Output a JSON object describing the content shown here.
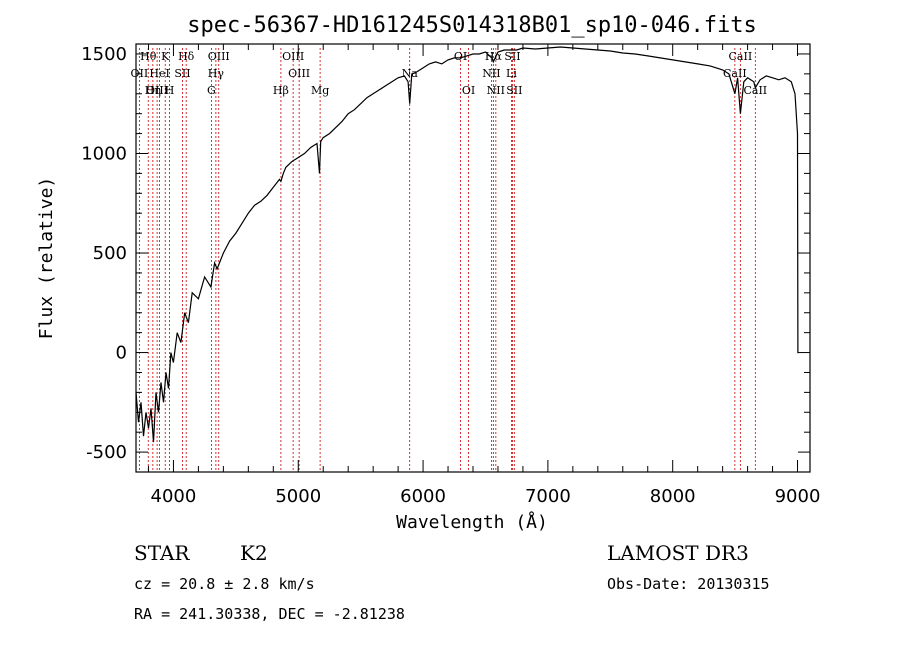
{
  "chart_data": {
    "type": "line",
    "title": "spec-56367-HD161245S014318B01_sp10-046.fits",
    "xlabel": "Wavelength (Å)",
    "ylabel": "Flux (relative)",
    "xlim": [
      3700,
      9100
    ],
    "ylim": [
      -600,
      1550
    ],
    "xticks": [
      4000,
      5000,
      6000,
      7000,
      8000,
      9000
    ],
    "yticks": [
      -500,
      0,
      500,
      1000,
      1500
    ],
    "grid": false,
    "series": [
      {
        "x": [
          3700,
          3720,
          3740,
          3760,
          3780,
          3800,
          3820,
          3840,
          3860,
          3880,
          3900,
          3920,
          3940,
          3960,
          3980,
          4000,
          4030,
          4060,
          4090,
          4120,
          4150,
          4200,
          4250,
          4300,
          4330,
          4350,
          4400,
          4450,
          4500,
          4550,
          4600,
          4650,
          4700,
          4750,
          4800,
          4850,
          4861,
          4880,
          4900,
          4950,
          5000,
          5050,
          5100,
          5150,
          5170,
          5180,
          5200,
          5250,
          5300,
          5350,
          5400,
          5450,
          5500,
          5550,
          5600,
          5650,
          5700,
          5750,
          5800,
          5850,
          5880,
          5893,
          5910,
          5950,
          6000,
          6050,
          6100,
          6150,
          6200,
          6250,
          6300,
          6350,
          6400,
          6450,
          6500,
          6550,
          6563,
          6600,
          6650,
          6700,
          6750,
          6800,
          6900,
          7000,
          7100,
          7200,
          7300,
          7400,
          7500,
          7600,
          7700,
          7800,
          7900,
          8000,
          8100,
          8200,
          8300,
          8400,
          8450,
          8498,
          8520,
          8542,
          8570,
          8600,
          8650,
          8662,
          8700,
          8750,
          8800,
          8850,
          8900,
          8950,
          8980,
          9000,
          9003,
          9006
        ],
        "y": [
          -200,
          -350,
          -250,
          -420,
          -300,
          -380,
          -280,
          -450,
          -200,
          -300,
          -150,
          -250,
          -100,
          -180,
          0,
          -50,
          100,
          50,
          200,
          150,
          300,
          270,
          380,
          330,
          450,
          420,
          500,
          560,
          600,
          650,
          700,
          740,
          760,
          790,
          830,
          870,
          860,
          900,
          930,
          960,
          980,
          1000,
          1030,
          1050,
          900,
          1060,
          1080,
          1100,
          1130,
          1160,
          1200,
          1220,
          1250,
          1280,
          1300,
          1320,
          1340,
          1360,
          1380,
          1390,
          1360,
          1250,
          1400,
          1410,
          1430,
          1450,
          1460,
          1450,
          1470,
          1480,
          1480,
          1490,
          1500,
          1500,
          1510,
          1480,
          1460,
          1510,
          1520,
          1520,
          1520,
          1530,
          1525,
          1530,
          1535,
          1530,
          1525,
          1520,
          1515,
          1505,
          1500,
          1490,
          1480,
          1470,
          1460,
          1450,
          1440,
          1420,
          1400,
          1300,
          1380,
          1200,
          1360,
          1380,
          1360,
          1330,
          1370,
          1390,
          1380,
          1370,
          1380,
          1360,
          1300,
          1100,
          0,
          0
        ]
      }
    ],
    "line_markers": [
      {
        "label": "Hθ",
        "x": 3798,
        "row": 1
      },
      {
        "label": "OII",
        "x": 3727,
        "row": 2
      },
      {
        "label": "OIII",
        "x": 3869,
        "row": 3
      },
      {
        "label": "Hη",
        "x": 3835,
        "row": 3
      },
      {
        "label": "K",
        "x": 3934,
        "row": 1
      },
      {
        "label": "H",
        "x": 3969,
        "row": 3
      },
      {
        "label": "HeI",
        "x": 3889,
        "row": 2
      },
      {
        "label": "SII",
        "x": 4072,
        "row": 2
      },
      {
        "label": "Hδ",
        "x": 4102,
        "row": 1
      },
      {
        "label": "OIII",
        "x": 4363,
        "row": 1
      },
      {
        "label": "Hγ",
        "x": 4340,
        "row": 2
      },
      {
        "label": "G",
        "x": 4304,
        "row": 3
      },
      {
        "label": "OIII",
        "x": 4959,
        "row": 1
      },
      {
        "label": "OIII",
        "x": 5007,
        "row": 2
      },
      {
        "label": "Hβ",
        "x": 4861,
        "row": 3
      },
      {
        "label": "Mg",
        "x": 5175,
        "row": 3
      },
      {
        "label": "Na",
        "x": 5893,
        "row": 2
      },
      {
        "label": "OI",
        "x": 6300,
        "row": 1
      },
      {
        "label": "OI",
        "x": 6364,
        "row": 3
      },
      {
        "label": "Hα",
        "x": 6563,
        "row": 1
      },
      {
        "label": "NII",
        "x": 6548,
        "row": 2
      },
      {
        "label": "NII",
        "x": 6583,
        "row": 3
      },
      {
        "label": "SII",
        "x": 6716,
        "row": 1
      },
      {
        "label": "Li",
        "x": 6708,
        "row": 2
      },
      {
        "label": "SII",
        "x": 6731,
        "row": 3
      },
      {
        "label": "CaII",
        "x": 8542,
        "row": 1
      },
      {
        "label": "CaII",
        "x": 8498,
        "row": 2
      },
      {
        "label": "CaII",
        "x": 8662,
        "row": 3
      }
    ]
  },
  "info": {
    "object_type": "STAR",
    "subclass": "K2",
    "survey": "LAMOST DR3",
    "cz": "cz = 20.8 ± 2.8 km/s",
    "obs_date": "Obs-Date: 20130315",
    "coords": "RA = 241.30338, DEC =  -2.81238"
  },
  "colors": {
    "spectrum": "#000000",
    "marker_line": "#cc0000",
    "axes": "#000000"
  }
}
